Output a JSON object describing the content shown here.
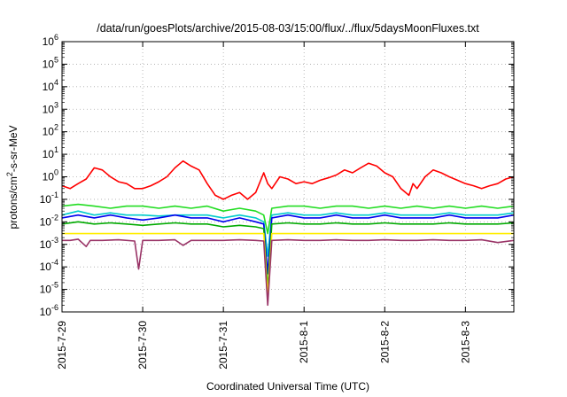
{
  "chart_data": {
    "type": "line",
    "title": "/data/run/goesPlots/archive/2015-08-03/15:00/flux/../flux/5daysMoonFluxes.txt",
    "xlabel": "Coordinated Universal Time (UTC)",
    "ylabel": {
      "prefix": "protons/cm",
      "sup": "2",
      "suffix": "-s-sr-MeV"
    },
    "yscale": "log",
    "ylim_exp": [
      -6,
      6
    ],
    "y_ticks": [
      {
        "base": "10",
        "exp": "-6"
      },
      {
        "base": "10",
        "exp": "-5"
      },
      {
        "base": "10",
        "exp": "-4"
      },
      {
        "base": "10",
        "exp": "-3"
      },
      {
        "base": "10",
        "exp": "-2"
      },
      {
        "base": "10",
        "exp": "-1"
      },
      {
        "base": "10",
        "exp": "0"
      },
      {
        "base": "10",
        "exp": "1"
      },
      {
        "base": "10",
        "exp": "2"
      },
      {
        "base": "10",
        "exp": "3"
      },
      {
        "base": "10",
        "exp": "4"
      },
      {
        "base": "10",
        "exp": "5"
      },
      {
        "base": "10",
        "exp": "6"
      }
    ],
    "x_range_days": [
      0,
      5.6
    ],
    "x_ticks": [
      {
        "label": "2015-7-29",
        "day": 0
      },
      {
        "label": "2015-7-30",
        "day": 1
      },
      {
        "label": "2015-7-31",
        "day": 2
      },
      {
        "label": "2015-8-1",
        "day": 3
      },
      {
        "label": "2015-8-2",
        "day": 4
      },
      {
        "label": "2015-8-3",
        "day": 5
      }
    ],
    "grid": true,
    "series": [
      {
        "color": "#ff0000",
        "values": [
          [
            0,
            0.4
          ],
          [
            0.1,
            0.3
          ],
          [
            0.2,
            0.5
          ],
          [
            0.3,
            0.8
          ],
          [
            0.4,
            2.5
          ],
          [
            0.5,
            2.0
          ],
          [
            0.6,
            1.0
          ],
          [
            0.7,
            0.6
          ],
          [
            0.8,
            0.5
          ],
          [
            0.9,
            0.3
          ],
          [
            1.0,
            0.3
          ],
          [
            1.1,
            0.4
          ],
          [
            1.2,
            0.6
          ],
          [
            1.3,
            1.0
          ],
          [
            1.4,
            2.5
          ],
          [
            1.5,
            5.0
          ],
          [
            1.6,
            3.0
          ],
          [
            1.7,
            2.0
          ],
          [
            1.8,
            0.5
          ],
          [
            1.9,
            0.15
          ],
          [
            2.0,
            0.1
          ],
          [
            2.1,
            0.15
          ],
          [
            2.2,
            0.2
          ],
          [
            2.3,
            0.1
          ],
          [
            2.4,
            0.2
          ],
          [
            2.5,
            1.5
          ],
          [
            2.55,
            0.5
          ],
          [
            2.6,
            0.3
          ],
          [
            2.7,
            1.0
          ],
          [
            2.8,
            0.8
          ],
          [
            2.9,
            0.5
          ],
          [
            3.0,
            0.6
          ],
          [
            3.1,
            0.5
          ],
          [
            3.2,
            0.7
          ],
          [
            3.3,
            0.9
          ],
          [
            3.4,
            1.2
          ],
          [
            3.5,
            2.0
          ],
          [
            3.6,
            1.5
          ],
          [
            3.7,
            2.5
          ],
          [
            3.8,
            4.0
          ],
          [
            3.9,
            3.0
          ],
          [
            4.0,
            1.5
          ],
          [
            4.1,
            1.0
          ],
          [
            4.2,
            0.3
          ],
          [
            4.3,
            0.15
          ],
          [
            4.35,
            0.5
          ],
          [
            4.4,
            0.3
          ],
          [
            4.5,
            1.0
          ],
          [
            4.6,
            2.0
          ],
          [
            4.7,
            1.5
          ],
          [
            4.8,
            1.0
          ],
          [
            4.9,
            0.7
          ],
          [
            5.0,
            0.5
          ],
          [
            5.1,
            0.4
          ],
          [
            5.2,
            0.3
          ],
          [
            5.3,
            0.4
          ],
          [
            5.4,
            0.5
          ],
          [
            5.5,
            0.8
          ],
          [
            5.6,
            1.0
          ]
        ]
      },
      {
        "color": "#22dd22",
        "values": [
          [
            0,
            0.05
          ],
          [
            0.2,
            0.06
          ],
          [
            0.4,
            0.05
          ],
          [
            0.6,
            0.04
          ],
          [
            0.8,
            0.05
          ],
          [
            1.0,
            0.05
          ],
          [
            1.2,
            0.04
          ],
          [
            1.4,
            0.05
          ],
          [
            1.6,
            0.04
          ],
          [
            1.8,
            0.05
          ],
          [
            2.0,
            0.03
          ],
          [
            2.2,
            0.04
          ],
          [
            2.4,
            0.03
          ],
          [
            2.5,
            0.02
          ],
          [
            2.55,
            0.003
          ],
          [
            2.6,
            0.04
          ],
          [
            2.8,
            0.05
          ],
          [
            3.0,
            0.05
          ],
          [
            3.2,
            0.04
          ],
          [
            3.4,
            0.05
          ],
          [
            3.6,
            0.05
          ],
          [
            3.8,
            0.04
          ],
          [
            4.0,
            0.05
          ],
          [
            4.2,
            0.04
          ],
          [
            4.4,
            0.05
          ],
          [
            4.6,
            0.04
          ],
          [
            4.8,
            0.05
          ],
          [
            5.0,
            0.04
          ],
          [
            5.2,
            0.05
          ],
          [
            5.4,
            0.04
          ],
          [
            5.6,
            0.05
          ]
        ]
      },
      {
        "color": "#00cccc",
        "values": [
          [
            0,
            0.02
          ],
          [
            0.2,
            0.03
          ],
          [
            0.4,
            0.02
          ],
          [
            0.6,
            0.025
          ],
          [
            0.8,
            0.02
          ],
          [
            1.0,
            0.02
          ],
          [
            1.2,
            0.018
          ],
          [
            1.4,
            0.02
          ],
          [
            1.6,
            0.02
          ],
          [
            1.8,
            0.02
          ],
          [
            2.0,
            0.015
          ],
          [
            2.2,
            0.02
          ],
          [
            2.4,
            0.015
          ],
          [
            2.5,
            0.01
          ],
          [
            2.55,
            0.0003
          ],
          [
            2.6,
            0.02
          ],
          [
            2.8,
            0.025
          ],
          [
            3.0,
            0.02
          ],
          [
            3.2,
            0.02
          ],
          [
            3.4,
            0.025
          ],
          [
            3.6,
            0.02
          ],
          [
            3.8,
            0.02
          ],
          [
            4.0,
            0.025
          ],
          [
            4.2,
            0.02
          ],
          [
            4.4,
            0.02
          ],
          [
            4.6,
            0.02
          ],
          [
            4.8,
            0.025
          ],
          [
            5.0,
            0.02
          ],
          [
            5.2,
            0.02
          ],
          [
            5.4,
            0.02
          ],
          [
            5.6,
            0.025
          ]
        ]
      },
      {
        "color": "#0000ee",
        "values": [
          [
            0,
            0.015
          ],
          [
            0.2,
            0.02
          ],
          [
            0.4,
            0.015
          ],
          [
            0.6,
            0.02
          ],
          [
            0.8,
            0.015
          ],
          [
            1.0,
            0.012
          ],
          [
            1.2,
            0.015
          ],
          [
            1.4,
            0.02
          ],
          [
            1.6,
            0.015
          ],
          [
            1.8,
            0.015
          ],
          [
            2.0,
            0.01
          ],
          [
            2.2,
            0.015
          ],
          [
            2.4,
            0.01
          ],
          [
            2.5,
            0.008
          ],
          [
            2.55,
            5e-05
          ],
          [
            2.6,
            0.015
          ],
          [
            2.8,
            0.02
          ],
          [
            3.0,
            0.015
          ],
          [
            3.2,
            0.015
          ],
          [
            3.4,
            0.02
          ],
          [
            3.6,
            0.015
          ],
          [
            3.8,
            0.015
          ],
          [
            4.0,
            0.02
          ],
          [
            4.2,
            0.015
          ],
          [
            4.4,
            0.015
          ],
          [
            4.6,
            0.015
          ],
          [
            4.8,
            0.02
          ],
          [
            5.0,
            0.015
          ],
          [
            5.2,
            0.015
          ],
          [
            5.4,
            0.015
          ],
          [
            5.6,
            0.02
          ]
        ]
      },
      {
        "color": "#00aa00",
        "values": [
          [
            0,
            0.008
          ],
          [
            0.2,
            0.01
          ],
          [
            0.4,
            0.008
          ],
          [
            0.6,
            0.009
          ],
          [
            0.8,
            0.008
          ],
          [
            1.0,
            0.007
          ],
          [
            1.2,
            0.008
          ],
          [
            1.4,
            0.009
          ],
          [
            1.6,
            0.008
          ],
          [
            1.8,
            0.008
          ],
          [
            2.0,
            0.006
          ],
          [
            2.2,
            0.007
          ],
          [
            2.4,
            0.006
          ],
          [
            2.5,
            0.005
          ],
          [
            2.55,
            1e-05
          ],
          [
            2.6,
            0.008
          ],
          [
            2.8,
            0.009
          ],
          [
            3.0,
            0.008
          ],
          [
            3.2,
            0.008
          ],
          [
            3.4,
            0.009
          ],
          [
            3.6,
            0.008
          ],
          [
            3.8,
            0.008
          ],
          [
            4.0,
            0.009
          ],
          [
            4.2,
            0.008
          ],
          [
            4.4,
            0.008
          ],
          [
            4.6,
            0.008
          ],
          [
            4.8,
            0.009
          ],
          [
            5.0,
            0.008
          ],
          [
            5.2,
            0.008
          ],
          [
            5.4,
            0.008
          ],
          [
            5.6,
            0.009
          ]
        ]
      },
      {
        "color": "#ffee00",
        "values": [
          [
            0,
            0.003
          ],
          [
            0.2,
            0.003
          ],
          [
            0.4,
            0.003
          ],
          [
            0.6,
            0.003
          ],
          [
            0.8,
            0.003
          ],
          [
            1.0,
            0.003
          ],
          [
            1.2,
            0.003
          ],
          [
            1.4,
            0.003
          ],
          [
            1.6,
            0.003
          ],
          [
            1.8,
            0.003
          ],
          [
            2.0,
            0.003
          ],
          [
            2.2,
            0.003
          ],
          [
            2.4,
            0.003
          ],
          [
            2.5,
            0.003
          ],
          [
            2.55,
            5e-06
          ],
          [
            2.6,
            0.003
          ],
          [
            2.8,
            0.003
          ],
          [
            3.0,
            0.003
          ],
          [
            3.2,
            0.003
          ],
          [
            3.4,
            0.003
          ],
          [
            3.6,
            0.003
          ],
          [
            3.8,
            0.003
          ],
          [
            4.0,
            0.003
          ],
          [
            4.2,
            0.003
          ],
          [
            4.4,
            0.003
          ],
          [
            4.6,
            0.003
          ],
          [
            4.8,
            0.003
          ],
          [
            5.0,
            0.003
          ],
          [
            5.2,
            0.003
          ],
          [
            5.4,
            0.003
          ],
          [
            5.6,
            0.003
          ]
        ]
      },
      {
        "color": "#993366",
        "values": [
          [
            0,
            0.0015
          ],
          [
            0.1,
            0.0015
          ],
          [
            0.2,
            0.0017
          ],
          [
            0.3,
            0.0008
          ],
          [
            0.35,
            0.0015
          ],
          [
            0.5,
            0.0015
          ],
          [
            0.7,
            0.0016
          ],
          [
            0.9,
            0.0014
          ],
          [
            0.95,
            8e-05
          ],
          [
            1.0,
            0.0015
          ],
          [
            1.2,
            0.0015
          ],
          [
            1.4,
            0.0016
          ],
          [
            1.5,
            0.0009
          ],
          [
            1.6,
            0.0015
          ],
          [
            1.8,
            0.0015
          ],
          [
            2.0,
            0.0015
          ],
          [
            2.2,
            0.0016
          ],
          [
            2.4,
            0.0015
          ],
          [
            2.5,
            0.0014
          ],
          [
            2.55,
            2e-06
          ],
          [
            2.6,
            0.0015
          ],
          [
            2.8,
            0.0016
          ],
          [
            3.0,
            0.0015
          ],
          [
            3.2,
            0.0015
          ],
          [
            3.4,
            0.0016
          ],
          [
            3.6,
            0.0015
          ],
          [
            3.8,
            0.0015
          ],
          [
            4.0,
            0.0016
          ],
          [
            4.2,
            0.0015
          ],
          [
            4.4,
            0.0015
          ],
          [
            4.6,
            0.0016
          ],
          [
            4.8,
            0.0015
          ],
          [
            5.0,
            0.0015
          ],
          [
            5.2,
            0.0016
          ],
          [
            5.4,
            0.0012
          ],
          [
            5.6,
            0.0015
          ]
        ]
      }
    ]
  }
}
